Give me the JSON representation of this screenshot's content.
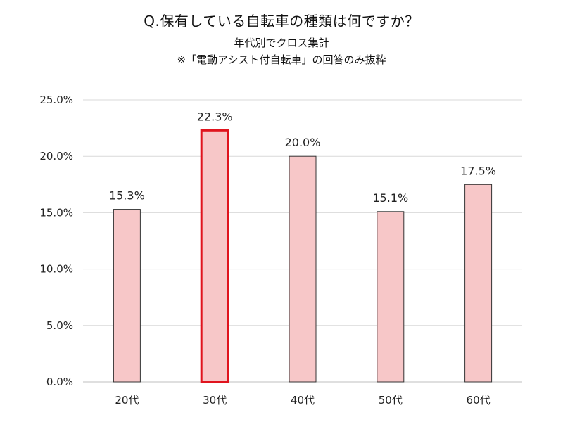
{
  "title": "Q.保有している自転車の種類は何ですか？",
  "subtitle_1": "年代別でクロス集計",
  "subtitle_2": "※「電動アシスト付自転車」の回答のみ抜粋",
  "chart_data": {
    "type": "bar",
    "title": "Q.保有している自転車の種類は何ですか？",
    "subtitle": "年代別でクロス集計 ※「電動アシスト付自転車」の回答のみ抜粋",
    "categories": [
      "20代",
      "30代",
      "40代",
      "50代",
      "60代"
    ],
    "values": [
      15.3,
      22.3,
      20.0,
      15.1,
      17.5
    ],
    "data_labels": [
      "15.3%",
      "22.3%",
      "20.0%",
      "15.1%",
      "17.5%"
    ],
    "ylim": [
      0,
      25
    ],
    "yticks": [
      0,
      5,
      10,
      15,
      20,
      25
    ],
    "ytick_labels": [
      "0.0%",
      "5.0%",
      "10.0%",
      "15.0%",
      "20.0%",
      "25.0%"
    ],
    "xlabel": "",
    "ylabel": "",
    "grid": true,
    "highlight_index": 1,
    "colors": {
      "bar_fill": "#f7c7c8",
      "bar_stroke": "#333333",
      "highlight_stroke": "#e0141e",
      "grid": "#d9d9d9"
    }
  }
}
